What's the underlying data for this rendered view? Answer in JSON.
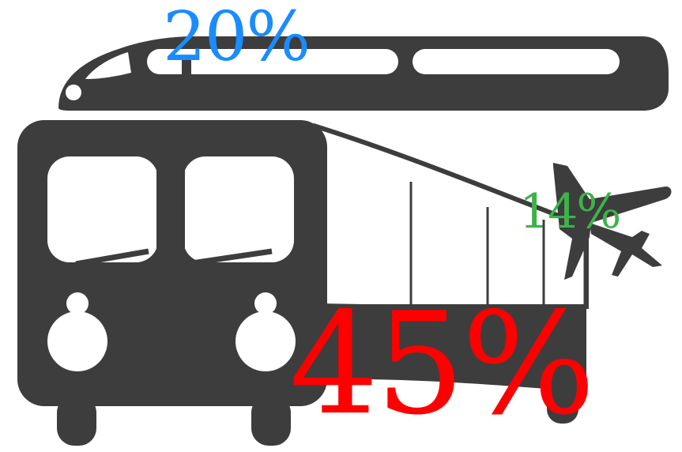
{
  "colors": {
    "vehicle": "#3d3d3d",
    "train_share": "#1a8cff",
    "plane_share": "#3db34a",
    "bus_share": "#ff0000",
    "background": "#ffffff"
  },
  "icons": {
    "train": "high-speed-train-icon",
    "bus": "bus-icon",
    "plane": "airplane-icon"
  },
  "shares": {
    "train": {
      "label": "20%",
      "value": 20
    },
    "plane": {
      "label": "14%",
      "value": 14
    },
    "bus": {
      "label": "45%",
      "value": 45
    }
  }
}
